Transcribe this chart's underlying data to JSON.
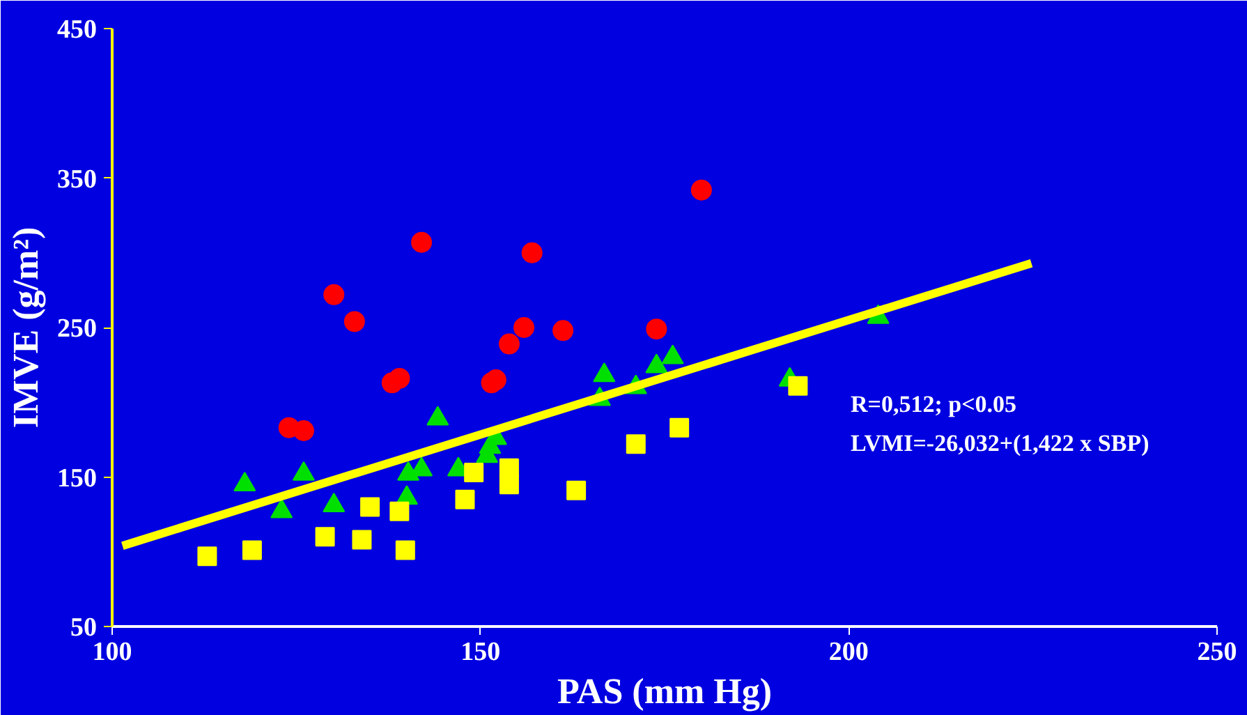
{
  "chart_data": {
    "type": "scatter",
    "xlabel": "PAS (mm Hg)",
    "ylabel": "IMVE (g/m²)",
    "xlim": [
      100,
      250
    ],
    "xticks": [
      100,
      150,
      200,
      250
    ],
    "ylim": [
      50,
      450
    ],
    "yticks": [
      50,
      150,
      250,
      350,
      450
    ],
    "grid": false,
    "series": [
      {
        "color": "#ff0000",
        "marker": "circle",
        "x": [
          124.0,
          126.0,
          130.1,
          132.9,
          138.0,
          139.0,
          142.0,
          151.5,
          152.1,
          153.9,
          155.9,
          157.0,
          161.2,
          173.9,
          180.0
        ],
        "values": [
          183,
          181,
          272,
          254,
          213,
          216,
          307,
          213,
          215,
          239,
          250,
          300,
          248,
          249,
          342
        ]
      },
      {
        "color": "#00e000",
        "marker": "triangle",
        "x": [
          118.0,
          123.0,
          126.0,
          130.1,
          140.0,
          140.2,
          142.0,
          144.2,
          147.0,
          150.9,
          151.3,
          152.1,
          166.8,
          166.2,
          171.1,
          173.9,
          176.1,
          192.0,
          204.0
        ],
        "values": [
          145,
          127,
          152,
          131,
          136,
          152,
          155,
          189,
          155,
          164,
          170,
          176,
          218,
          202,
          210,
          224,
          230,
          215,
          257
        ]
      },
      {
        "color": "#ffff00",
        "marker": "square",
        "x": [
          112.9,
          119.0,
          128.9,
          133.9,
          135.0,
          139.0,
          139.8,
          147.9,
          149.1,
          153.9,
          153.9,
          163.0,
          171.1,
          177.0,
          193.1
        ],
        "values": [
          97,
          101,
          110,
          108,
          130,
          127,
          101,
          135,
          153,
          156,
          145,
          141,
          172,
          183,
          211
        ]
      },
      {
        "type": "line",
        "color": "#ffff00",
        "x": [
          101.4,
          224.8
        ],
        "values": [
          104,
          293
        ]
      }
    ],
    "annotations": [
      "R=0,512; p<0.05",
      "LVMI=-26,032+(1,422 x SBP)"
    ]
  }
}
